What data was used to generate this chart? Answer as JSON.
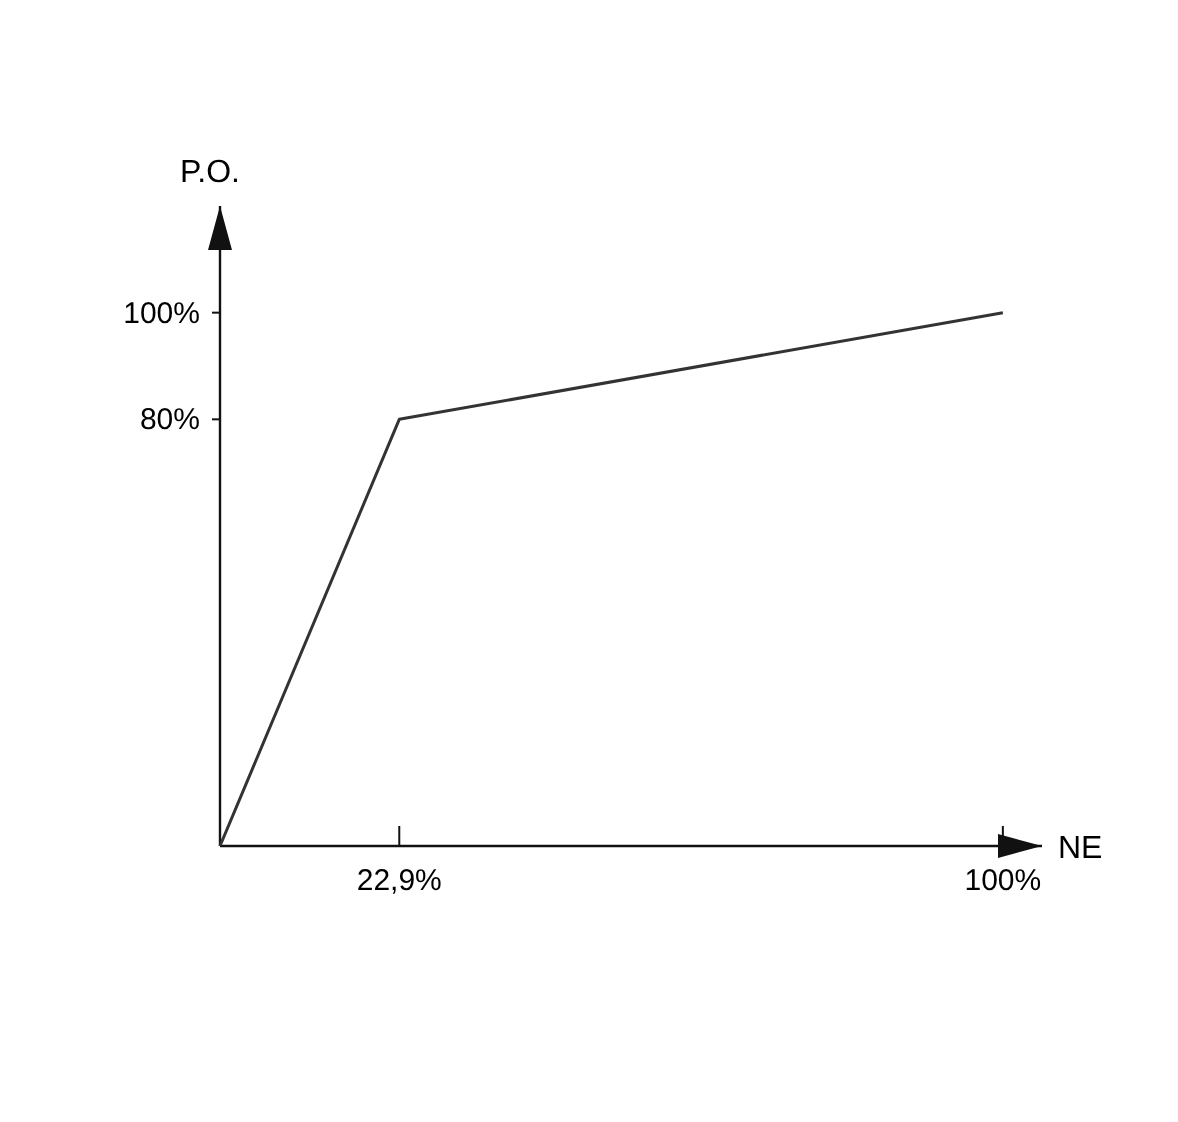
{
  "chart_data": {
    "type": "line",
    "xlabel": "NE",
    "ylabel": "P.O.",
    "x": [
      0,
      22.9,
      100
    ],
    "series": [
      {
        "color": "#333333",
        "values": [
          0,
          80,
          100
        ]
      }
    ],
    "xlim": [
      0,
      105
    ],
    "ylim": [
      0,
      120
    ],
    "xticks": [
      {
        "value": 22.9,
        "label": "22,9%"
      },
      {
        "value": 100,
        "label": "100%"
      }
    ],
    "yticks": [
      {
        "value": 80,
        "label": "80%"
      },
      {
        "value": 100,
        "label": "100%"
      }
    ],
    "grid": false,
    "marker": "none",
    "line_style": "solid"
  }
}
